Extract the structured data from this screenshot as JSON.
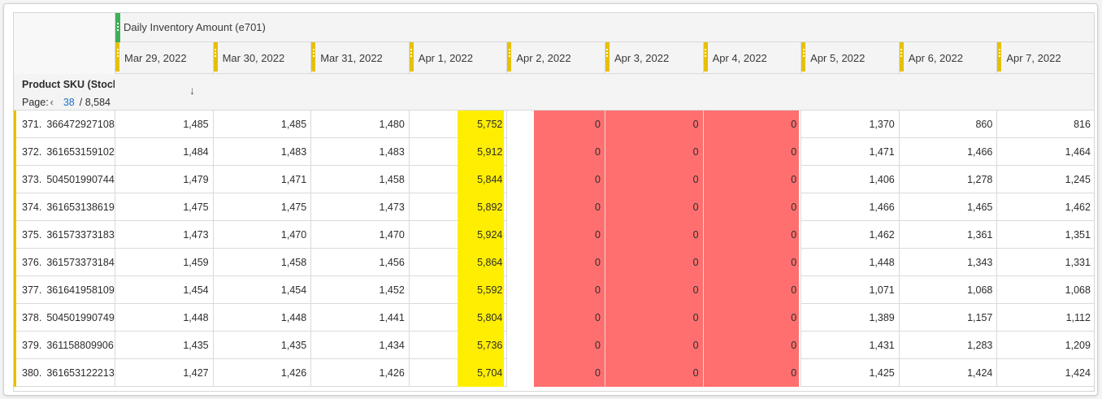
{
  "metric_header": "Daily Inventory Amount (e701)",
  "dimension": {
    "title": "Product SKU (Stock)",
    "page_label": "Page:",
    "page_number": "38",
    "page_total": "/ 8,584"
  },
  "dates": [
    "Mar 29, 2022",
    "Mar 30, 2022",
    "Mar 31, 2022",
    "Apr 1, 2022",
    "Apr 2, 2022",
    "Apr 3, 2022",
    "Apr 4, 2022",
    "Apr 5, 2022",
    "Apr 6, 2022",
    "Apr 7, 2022"
  ],
  "rows": [
    {
      "index": "371.",
      "sku": "366472927108",
      "values": [
        "1,485",
        "1,485",
        "1,480",
        "5,752",
        "0",
        "0",
        "0",
        "1,370",
        "860",
        "816"
      ]
    },
    {
      "index": "372.",
      "sku": "361653159102",
      "values": [
        "1,484",
        "1,483",
        "1,483",
        "5,912",
        "0",
        "0",
        "0",
        "1,471",
        "1,466",
        "1,464"
      ]
    },
    {
      "index": "373.",
      "sku": "504501990744",
      "values": [
        "1,479",
        "1,471",
        "1,458",
        "5,844",
        "0",
        "0",
        "0",
        "1,406",
        "1,278",
        "1,245"
      ]
    },
    {
      "index": "374.",
      "sku": "361653138619",
      "values": [
        "1,475",
        "1,475",
        "1,473",
        "5,892",
        "0",
        "0",
        "0",
        "1,466",
        "1,465",
        "1,462"
      ]
    },
    {
      "index": "375.",
      "sku": "361573373183",
      "values": [
        "1,473",
        "1,470",
        "1,470",
        "5,924",
        "0",
        "0",
        "0",
        "1,462",
        "1,361",
        "1,351"
      ]
    },
    {
      "index": "376.",
      "sku": "361573373184",
      "values": [
        "1,459",
        "1,458",
        "1,456",
        "5,864",
        "0",
        "0",
        "0",
        "1,448",
        "1,343",
        "1,331"
      ]
    },
    {
      "index": "377.",
      "sku": "361641958109",
      "values": [
        "1,454",
        "1,454",
        "1,452",
        "5,592",
        "0",
        "0",
        "0",
        "1,071",
        "1,068",
        "1,068"
      ]
    },
    {
      "index": "378.",
      "sku": "504501990749",
      "values": [
        "1,448",
        "1,448",
        "1,441",
        "5,804",
        "0",
        "0",
        "0",
        "1,389",
        "1,157",
        "1,112"
      ]
    },
    {
      "index": "379.",
      "sku": "361158809906",
      "values": [
        "1,435",
        "1,435",
        "1,434",
        "5,736",
        "0",
        "0",
        "0",
        "1,431",
        "1,283",
        "1,209"
      ]
    },
    {
      "index": "380.",
      "sku": "361653122213",
      "values": [
        "1,427",
        "1,426",
        "1,426",
        "5,704",
        "0",
        "0",
        "0",
        "1,425",
        "1,424",
        "1,424"
      ]
    }
  ],
  "colors": {
    "metric_bar": "#3fae5a",
    "date_bar": "#e7c000",
    "highlight_yellow": "#ffee00",
    "highlight_red": "#ff6f6f",
    "page_link": "#1e6fc9"
  },
  "icons": {
    "sort": "arrow-down-icon",
    "prev_page": "chevron-left-icon"
  }
}
